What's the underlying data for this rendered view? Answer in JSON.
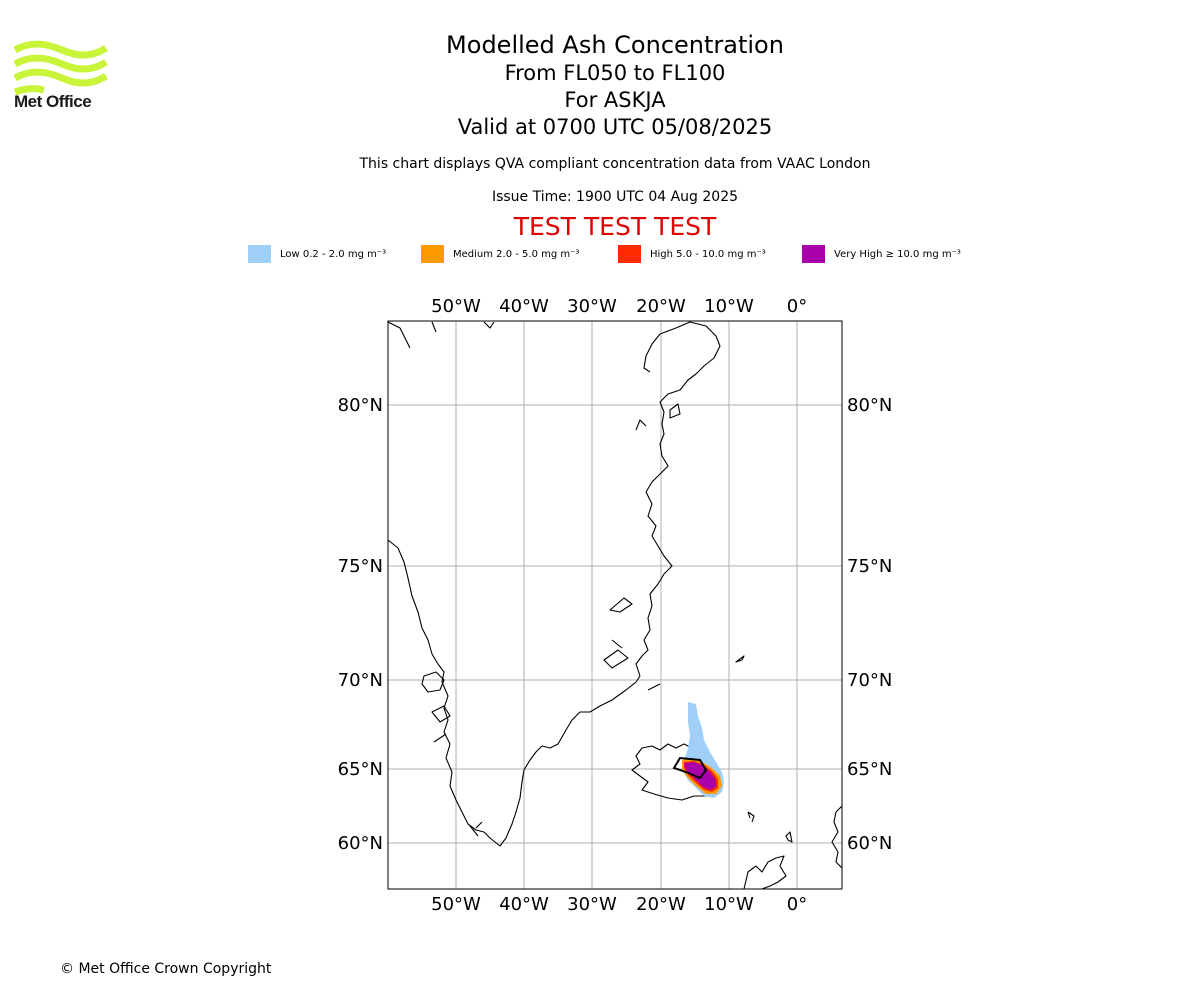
{
  "logo": {
    "text": "Met Office",
    "color": "#c8f53a"
  },
  "title": {
    "line1": "Modelled Ash Concentration",
    "line2": "From FL050 to FL100",
    "line3": "For ASKJA",
    "line4": "Valid at 0700 UTC 05/08/2025"
  },
  "info": {
    "description": "This chart displays QVA compliant concentration data from VAAC London",
    "issue_time": "Issue Time: 1900 UTC 04 Aug 2025"
  },
  "banner": {
    "text": "TEST TEST TEST",
    "color": "#dd0000"
  },
  "legend": [
    {
      "label": "Low 0.2 - 2.0 mg m⁻³",
      "color": "#a0d0f8"
    },
    {
      "label": "Medium 2.0 - 5.0 mg m⁻³",
      "color": "#ff9900"
    },
    {
      "label": "High 5.0 - 10.0 mg m⁻³",
      "color": "#ff2a00"
    },
    {
      "label": "Very High ≥ 10.0 mg m⁻³",
      "color": "#aa00aa"
    }
  ],
  "map": {
    "lon_labels": [
      "50°W",
      "40°W",
      "30°W",
      "20°W",
      "10°W",
      "0°"
    ],
    "lat_labels": [
      "80°N",
      "75°N",
      "70°N",
      "65°N",
      "60°N"
    ],
    "grid_color": "#b0b0b0"
  },
  "footer": {
    "copyright": "© Met Office Crown Copyright"
  }
}
